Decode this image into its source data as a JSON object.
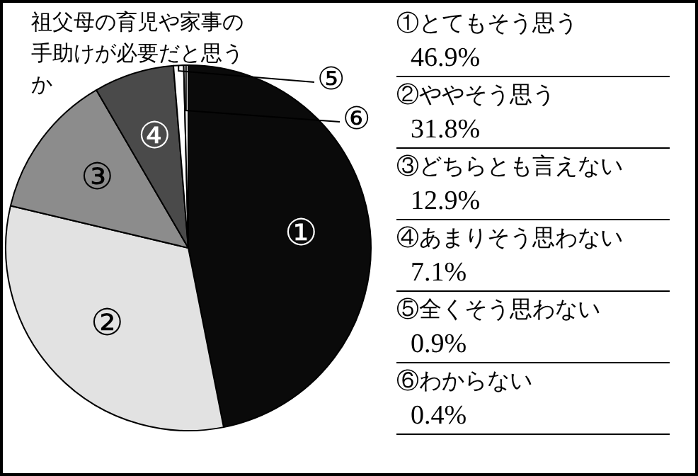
{
  "chart_data": {
    "type": "pie",
    "title": "祖父母の育児や家事の手助けが必要だと思うか",
    "categories": [
      "①",
      "②",
      "③",
      "④",
      "⑤",
      "⑥"
    ],
    "values": [
      46.9,
      31.8,
      12.9,
      7.1,
      0.9,
      0.4
    ],
    "colors": [
      "#0a0a0a",
      "#e2e2e2",
      "#8c8c8c",
      "#4a4a4a",
      "#ffffff",
      "#eeeeee"
    ],
    "annotations": [
      "①とてもそう思う",
      "46.9%",
      "②ややそう思う",
      "31.8%",
      "③どちらとも言えない",
      "12.9%",
      "④あまりそう思わない",
      "7.1%",
      "⑤全くそう思わない",
      "0.9%",
      "⑥わからない",
      "0.4%"
    ]
  }
}
